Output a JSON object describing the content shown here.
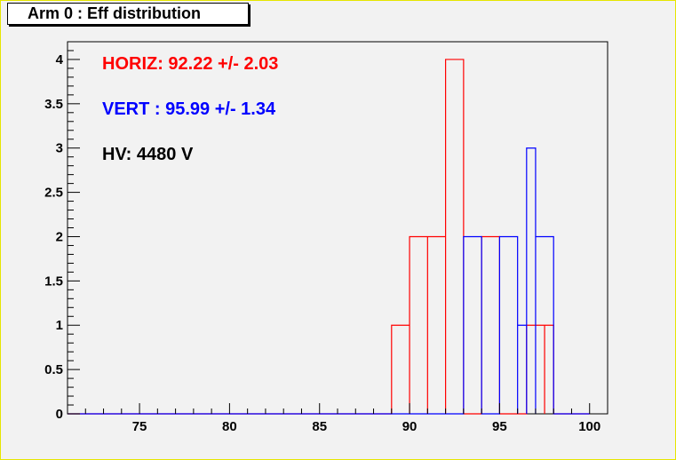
{
  "title": "Arm 0 : Eff distribution",
  "annotations": {
    "horiz": "HORIZ: 92.22 +/- 2.03",
    "vert": "VERT : 95.99 +/- 1.34",
    "hv": "HV: 4480 V"
  },
  "colors": {
    "background": "#f2f2f2",
    "frame_border": "#e6e600",
    "horiz": "#ff0000",
    "vert": "#0000ff",
    "hv": "#000000"
  },
  "chart_data": {
    "type": "bar",
    "histogram": true,
    "title": "Arm 0 : Eff distribution",
    "xlabel": "",
    "ylabel": "",
    "xlim": [
      71,
      101
    ],
    "ylim": [
      0,
      4.2
    ],
    "bin_width": 1,
    "x_ticks": [
      "75",
      "80",
      "85",
      "90",
      "95",
      "100"
    ],
    "y_ticks": [
      "0",
      "0.5",
      "1",
      "1.5",
      "2",
      "2.5",
      "3",
      "3.5",
      "4"
    ],
    "grid": false,
    "legend": "none",
    "series": [
      {
        "color": "#ff0000",
        "bins": [
          {
            "x0": 89,
            "value": 1
          },
          {
            "x0": 90,
            "value": 2
          },
          {
            "x0": 91,
            "value": 2
          },
          {
            "x0": 92,
            "value": 4
          },
          {
            "x0": 94,
            "value": 2
          },
          {
            "x0": 96.5,
            "value": 1
          },
          {
            "x0": 97,
            "value": 1
          }
        ]
      },
      {
        "color": "#0000ff",
        "bins": [
          {
            "x0": 93,
            "value": 2
          },
          {
            "x0": 95,
            "value": 2
          },
          {
            "x0": 95.5,
            "value": 1
          },
          {
            "x0": 96,
            "value": 3
          },
          {
            "x0": 97,
            "value": 2
          }
        ]
      }
    ]
  }
}
